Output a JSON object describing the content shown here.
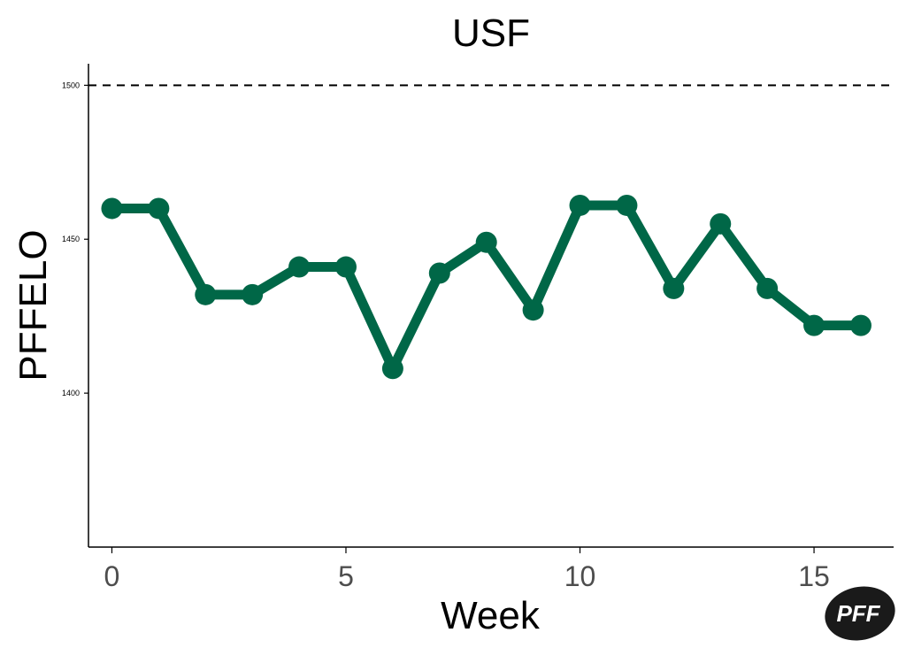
{
  "chart_data": {
    "type": "line",
    "title": "USF",
    "xlabel": "Week",
    "ylabel": "PFFELO",
    "xlim": [
      -0.5,
      16.7
    ],
    "ylim": [
      1350,
      1507
    ],
    "x_ticks": [
      0,
      5,
      10,
      15
    ],
    "y_ticks": [
      1400,
      1450,
      1500
    ],
    "reference_line": {
      "y": 1500,
      "style": "dashed"
    },
    "grid": false,
    "series": [
      {
        "color": "#006747",
        "x": [
          0,
          1,
          2,
          3,
          4,
          5,
          6,
          7,
          8,
          9,
          10,
          11,
          12,
          13,
          14,
          15,
          16
        ],
        "y": [
          1460,
          1460,
          1432,
          1432,
          1441,
          1441,
          1408,
          1439,
          1449,
          1427,
          1461,
          1461,
          1434,
          1455,
          1434,
          1422,
          1422
        ]
      }
    ]
  },
  "logo": {
    "text": "PFF"
  }
}
